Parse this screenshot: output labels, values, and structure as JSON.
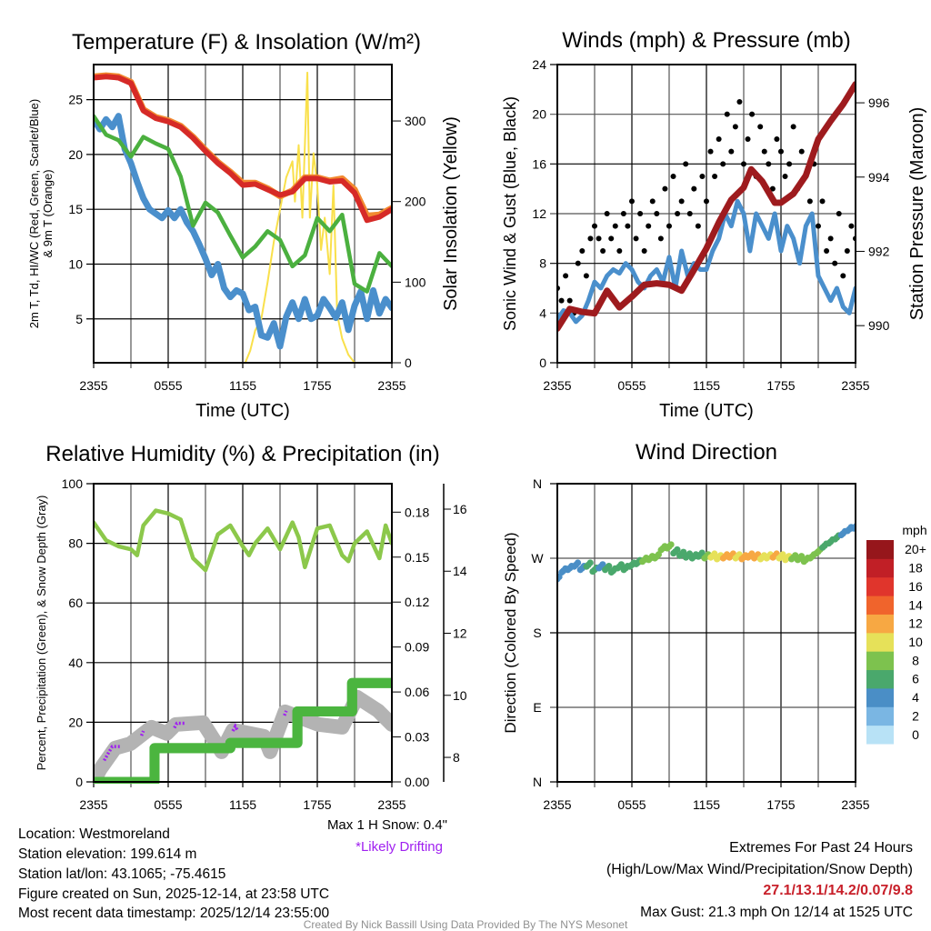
{
  "chart_data": [
    {
      "type": "line",
      "title": "Temperature (F) & Insolation (W/m²)",
      "xlabel": "Time (UTC)",
      "ylabel": "2m T, Td, HI/WC (Red, Green, Scarlet/Blue)",
      "ylabel_line2": "& 9m T (Orange)",
      "y2label": "Solar Insolation (Yellow)",
      "xlim": [
        0,
        24
      ],
      "x_tick_labels": [
        "2355",
        "0555",
        "1155",
        "1755",
        "2355"
      ],
      "ylim": [
        1,
        28.2
      ],
      "yticks": [
        "5",
        "10",
        "15",
        "20",
        "25"
      ],
      "y2lim": [
        0,
        370
      ],
      "y2ticks": [
        "0",
        "100",
        "200",
        "300"
      ],
      "grid": true,
      "series": [
        {
          "name": "9m T",
          "axis": "left",
          "color": "#f28a30",
          "x": [
            0,
            1,
            2,
            3,
            4,
            5,
            6,
            7,
            8,
            9,
            10,
            11,
            12,
            13,
            14,
            15,
            16,
            17,
            18,
            19,
            20,
            21,
            22,
            23,
            24
          ],
          "values": [
            27.1,
            27.2,
            27.1,
            26.6,
            24.1,
            23.4,
            23.1,
            22.6,
            21.6,
            20.4,
            19.3,
            18.4,
            17.4,
            17.4,
            16.9,
            16.2,
            16.7,
            17.9,
            17.9,
            17.6,
            17.8,
            16.8,
            14.4,
            14.5,
            15.1
          ]
        },
        {
          "name": "2m T",
          "axis": "left",
          "color": "#d62a27",
          "x": [
            0,
            1,
            2,
            3,
            4,
            5,
            6,
            7,
            8,
            9,
            10,
            11,
            12,
            13,
            14,
            15,
            16,
            17,
            18,
            19,
            20,
            21,
            22,
            23,
            24
          ],
          "values": [
            27,
            27.1,
            27,
            26.5,
            24,
            23.3,
            23,
            22.5,
            21.5,
            20.3,
            19.2,
            18.3,
            17.2,
            17.3,
            16.8,
            16.3,
            16.6,
            17.8,
            17.8,
            17.5,
            17.6,
            16.5,
            14,
            14.3,
            15
          ]
        },
        {
          "name": "Td",
          "axis": "left",
          "color": "#4bb03f",
          "x": [
            0,
            1,
            2,
            3,
            4,
            5,
            6,
            7,
            8,
            9,
            10,
            11,
            12,
            13,
            14,
            15,
            16,
            17,
            18,
            19,
            20,
            21,
            22,
            23,
            24
          ],
          "values": [
            23.5,
            21.8,
            21.3,
            19.8,
            21.6,
            21,
            20.5,
            18,
            13.5,
            15.6,
            14.7,
            12.6,
            10.6,
            11.6,
            13,
            12.2,
            9.8,
            10.8,
            14.2,
            13,
            14.5,
            8.2,
            7.5,
            11,
            9.8
          ]
        },
        {
          "name": "HI/WC",
          "axis": "left",
          "color": "#4a8fcc",
          "x": [
            0,
            0.5,
            1,
            1.5,
            2,
            2.5,
            3,
            3.5,
            4,
            4.5,
            5,
            5.5,
            6,
            6.5,
            7,
            7.5,
            8,
            8.5,
            9,
            9.5,
            10,
            10.5,
            11,
            11.5,
            12,
            12.5,
            13,
            13.5,
            14,
            14.5,
            15,
            15.5,
            16,
            16.5,
            17,
            17.5,
            18,
            18.5,
            19,
            19.5,
            20,
            20.5,
            21,
            21.5,
            22,
            22.5,
            23,
            23.5,
            24
          ],
          "values": [
            23.2,
            22.3,
            23.2,
            22.5,
            23.5,
            20.5,
            19.2,
            17.5,
            16,
            15,
            14.6,
            14.2,
            14.9,
            14.2,
            15,
            13.8,
            13,
            11.8,
            10.5,
            9,
            10,
            7.8,
            7,
            7.6,
            7.3,
            5.8,
            6.1,
            3.5,
            3.3,
            4.6,
            2.5,
            5.2,
            6.5,
            5,
            6.8,
            5,
            5.3,
            6.8,
            6,
            5.1,
            6.5,
            4,
            6.2,
            7.5,
            5,
            7.6,
            5.5,
            6.8,
            6
          ]
        },
        {
          "name": "Solar Insolation",
          "axis": "right",
          "color": "#f9e04b",
          "x": [
            0,
            12.2,
            12.6,
            13,
            13.5,
            14,
            14.5,
            15,
            15.5,
            16,
            16.2,
            16.5,
            16.8,
            17.2,
            17.4,
            17.7,
            18,
            18.3,
            18.6,
            19,
            19.3,
            19.6,
            20,
            20.5,
            21,
            24
          ],
          "values": [
            0,
            0,
            15,
            40,
            55,
            100,
            150,
            190,
            230,
            250,
            200,
            270,
            180,
            360,
            180,
            260,
            220,
            140,
            180,
            110,
            220,
            60,
            30,
            10,
            0,
            0
          ]
        }
      ]
    },
    {
      "type": "line+scatter",
      "title": "Winds (mph) & Pressure (mb)",
      "xlabel": "Time (UTC)",
      "ylabel": "Sonic Wind & Gust (Blue, Black)",
      "y2label": "Station Pressure (Maroon)",
      "xlim": [
        0,
        24
      ],
      "x_tick_labels": [
        "2355",
        "0555",
        "1155",
        "1755",
        "2355"
      ],
      "ylim": [
        0,
        24
      ],
      "yticks": [
        "0",
        "4",
        "8",
        "12",
        "16",
        "20",
        "24"
      ],
      "y2lim": [
        989,
        997.03
      ],
      "y2ticks": [
        "990",
        "992",
        "994",
        "996"
      ],
      "grid": true,
      "series": [
        {
          "name": "Sonic Wind",
          "axis": "left",
          "color": "#4a8fcc",
          "x": [
            0,
            0.5,
            1,
            1.5,
            2,
            2.5,
            3,
            3.5,
            4,
            4.5,
            5,
            5.5,
            6,
            6.5,
            7,
            7.5,
            8,
            8.5,
            9,
            9.5,
            10,
            10.5,
            11,
            11.5,
            12,
            12.5,
            13,
            13.5,
            14,
            14.5,
            15,
            15.5,
            16,
            16.5,
            17,
            17.5,
            18,
            18.5,
            19,
            19.5,
            20,
            20.5,
            21,
            21.5,
            22,
            22.5,
            23,
            23.5,
            24
          ],
          "values": [
            3.5,
            4.2,
            4,
            3.3,
            3.8,
            5,
            6.5,
            6,
            7,
            7.5,
            7.2,
            8,
            7.5,
            6.5,
            6,
            7,
            7.5,
            6.5,
            8.5,
            6,
            9,
            7,
            8,
            7.5,
            7.5,
            9,
            10,
            12,
            11,
            13,
            12,
            9,
            12,
            11,
            10,
            12,
            9,
            11,
            10,
            8,
            11,
            12,
            7,
            6,
            5,
            6,
            4.5,
            4,
            6
          ]
        },
        {
          "name": "Station Pressure",
          "axis": "right",
          "color": "#9e1b1e",
          "x": [
            0,
            1,
            2,
            3,
            4,
            5,
            6,
            7,
            8,
            9,
            10,
            11,
            12,
            13,
            14,
            15,
            15.6,
            16.5,
            17.5,
            18,
            19,
            20,
            21,
            22,
            23,
            24
          ],
          "values": [
            989.92,
            990.45,
            990.37,
            990.33,
            990.94,
            990.49,
            990.78,
            991.1,
            991.14,
            991.1,
            990.94,
            991.5,
            992.08,
            992.78,
            993.39,
            993.72,
            994.21,
            993.88,
            993.31,
            993.31,
            993.55,
            994.04,
            995.02,
            995.51,
            995.96,
            996.5
          ]
        }
      ],
      "gusts": {
        "name": "Gust",
        "color": "#000000",
        "start_hour": 0,
        "interval_hours": 0.3333,
        "values": [
          6,
          5,
          7,
          5,
          4,
          8,
          9,
          7,
          10,
          11,
          10,
          9,
          12,
          10,
          11,
          9,
          12,
          11,
          13,
          10,
          12,
          9,
          11,
          13,
          12,
          10,
          14,
          11,
          15,
          12,
          13,
          16,
          12,
          14,
          11,
          15,
          13,
          17,
          15,
          18,
          16,
          20,
          17,
          19,
          21,
          16,
          18,
          20,
          15,
          19,
          17,
          16,
          14,
          18,
          17,
          15,
          16,
          19,
          14,
          17,
          15,
          13,
          16,
          11,
          13,
          9,
          10,
          8,
          12,
          7,
          9,
          11,
          10
        ]
      }
    },
    {
      "type": "line",
      "title": "Relative Humidity (%) & Precipitation (in)",
      "ylabel": "Percent, Precipitation (Green), & Snow Depth (Gray)",
      "xlim": [
        0,
        24
      ],
      "x_tick_labels": [
        "2355",
        "0555",
        "1155",
        "1755",
        "2355"
      ],
      "ylim": [
        0,
        100
      ],
      "yticks": [
        "0",
        "20",
        "40",
        "60",
        "80",
        "100"
      ],
      "y2lim": [
        0,
        0.199
      ],
      "y2ticks": [
        "0.00",
        "0.03",
        "0.06",
        "0.09",
        "0.12",
        "0.15",
        "0.18"
      ],
      "y3lim": [
        7.21,
        16.82
      ],
      "y3ticks": [
        "8",
        "10",
        "12",
        "14",
        "16"
      ],
      "grid": true,
      "series": [
        {
          "name": "Relative Humidity",
          "axis": "left",
          "color": "#8cc84b",
          "x": [
            0,
            1,
            2,
            3,
            3.5,
            4,
            5,
            6,
            7,
            8,
            9,
            10,
            11,
            12,
            12.5,
            13,
            14,
            15,
            16,
            16.5,
            17,
            18,
            19,
            20,
            20.5,
            21,
            22,
            23,
            23.5,
            24
          ],
          "values": [
            87,
            81,
            79,
            78,
            76,
            86,
            91,
            90,
            88,
            75,
            71,
            83,
            86,
            79,
            76,
            80,
            85,
            78,
            87,
            82,
            72,
            85,
            86,
            76,
            74,
            80,
            84,
            75,
            86,
            80
          ]
        },
        {
          "name": "Snow Depth",
          "axis": "y3",
          "color": "#b3b3b3",
          "x": [
            0,
            0.5,
            1.73,
            2.95,
            4.66,
            5.88,
            6.6,
            8.8,
            10.3,
            11.2,
            13.7,
            14.2,
            15.4,
            18.1,
            20,
            21.2,
            22.9,
            24
          ],
          "values": [
            7.21,
            7.6,
            8.3,
            8.44,
            8.97,
            8.77,
            9.06,
            9.12,
            8.18,
            8.88,
            8.68,
            8.18,
            9.47,
            9.06,
            8.97,
            9.94,
            9.5,
            9.06
          ]
        },
        {
          "name": "Precipitation",
          "axis": "right",
          "color": "#4bb53f",
          "step": true,
          "x": [
            0,
            3.7,
            4.9,
            11,
            14.4,
            16.4,
            19.2,
            20.8,
            24
          ],
          "values": [
            0,
            0,
            0.0225,
            0.026,
            0.026,
            0.047,
            0.047,
            0.066,
            0.066
          ]
        }
      ],
      "drifting_segments": {
        "color": "#a020f0",
        "axis": "y3",
        "segments": [
          {
            "x": [
              0.85,
              1.2,
              1.5,
              2.1
            ],
            "values": [
              7.9,
              8.15,
              8.35,
              8.35
            ]
          },
          {
            "x": [
              3.85,
              4.0
            ],
            "values": [
              8.7,
              8.85
            ]
          },
          {
            "x": [
              6.5,
              6.7,
              7.4
            ],
            "values": [
              8.95,
              9.1,
              9.1
            ]
          },
          {
            "x": [
              11.2,
              11.4,
              11.6
            ],
            "values": [
              8.85,
              9.0,
              8.85
            ]
          },
          {
            "x": [
              15.35,
              15.5
            ],
            "values": [
              9.35,
              9.5
            ]
          },
          {
            "x": [
              20.5,
              20.8,
              21.1
            ],
            "values": [
              9.5,
              9.85,
              9.8
            ]
          }
        ]
      }
    },
    {
      "type": "scatter",
      "title": "Wind Direction",
      "ylabel": "Direction (Colored By Speed)",
      "xlim": [
        0,
        24
      ],
      "x_tick_labels": [
        "2355",
        "0555",
        "1155",
        "1755",
        "2355"
      ],
      "ylim": [
        0,
        360
      ],
      "yticks": [
        "N",
        "E",
        "S",
        "W",
        "N"
      ],
      "grid": true,
      "x": [
        0,
        0.5,
        1,
        1.5,
        2,
        2.5,
        3,
        3.5,
        4,
        4.5,
        5,
        5.5,
        6,
        6.5,
        7,
        7.5,
        8,
        8.5,
        9,
        9.5,
        10,
        10.5,
        11,
        11.5,
        12,
        12.5,
        13,
        13.5,
        14,
        14.5,
        15,
        15.5,
        16,
        16.5,
        17,
        17.5,
        18,
        18.5,
        19,
        19.5,
        20,
        20.5,
        21,
        21.5,
        22,
        22.5,
        23,
        23.5,
        24
      ],
      "direction": [
        245,
        255,
        258,
        262,
        258,
        262,
        256,
        260,
        258,
        255,
        260,
        258,
        262,
        265,
        268,
        270,
        272,
        282,
        284,
        278,
        275,
        273,
        272,
        274,
        272,
        273,
        271,
        272,
        273,
        272,
        271,
        273,
        272,
        271,
        272,
        273,
        272,
        270,
        271,
        270,
        268,
        272,
        278,
        285,
        290,
        295,
        300,
        305,
        308
      ],
      "speed": [
        4,
        4,
        5,
        4,
        5,
        6,
        6,
        5,
        6,
        6,
        7,
        7,
        6,
        7,
        8,
        8,
        9,
        9,
        8,
        7,
        7,
        6,
        7,
        7,
        8,
        10,
        11,
        12,
        12,
        11,
        13,
        12,
        12,
        11,
        10,
        12,
        11,
        10,
        9,
        9,
        9,
        8,
        8,
        7,
        6,
        6,
        5,
        5,
        4
      ],
      "colorbar": {
        "title": "mph",
        "labels": [
          "0",
          "2",
          "4",
          "6",
          "8",
          "10",
          "12",
          "14",
          "16",
          "18",
          "20+"
        ],
        "colors": [
          "#b8e2f6",
          "#7ab6e3",
          "#4a8ec6",
          "#4aa86c",
          "#7dc24e",
          "#e6e159",
          "#f7a843",
          "#f0642c",
          "#e0352c",
          "#c11f26",
          "#96161b"
        ]
      }
    }
  ],
  "annotations": {
    "max_snow": "Max 1 H Snow: 0.4\"",
    "likely_drifting": "*Likely Drifting"
  },
  "station_info": {
    "location": "Location: Westmoreland",
    "elevation": "Station elevation: 199.614 m",
    "latlon": "Station lat/lon: 43.1065; -75.4615",
    "created": "Figure created on Sun, 2025-12-14, at 23:58 UTC",
    "recent": "Most recent data timestamp: 2025/12/14 23:55:00"
  },
  "extremes": {
    "heading": "Extremes For Past 24 Hours",
    "legend": "(High/Low/Max Wind/Precipitation/Snow Depth)",
    "values": "27.1/13.1/14.2/0.07/9.8",
    "max_gust": "Max Gust: 21.3 mph On 12/14 at 1525 UTC"
  },
  "credit": "Created By Nick Bassill Using Data Provided By The NYS Mesonet",
  "colors": {
    "extremes_red": "#c8202a",
    "drifting_purple": "#a020f0",
    "credit_gray": "#909090"
  }
}
